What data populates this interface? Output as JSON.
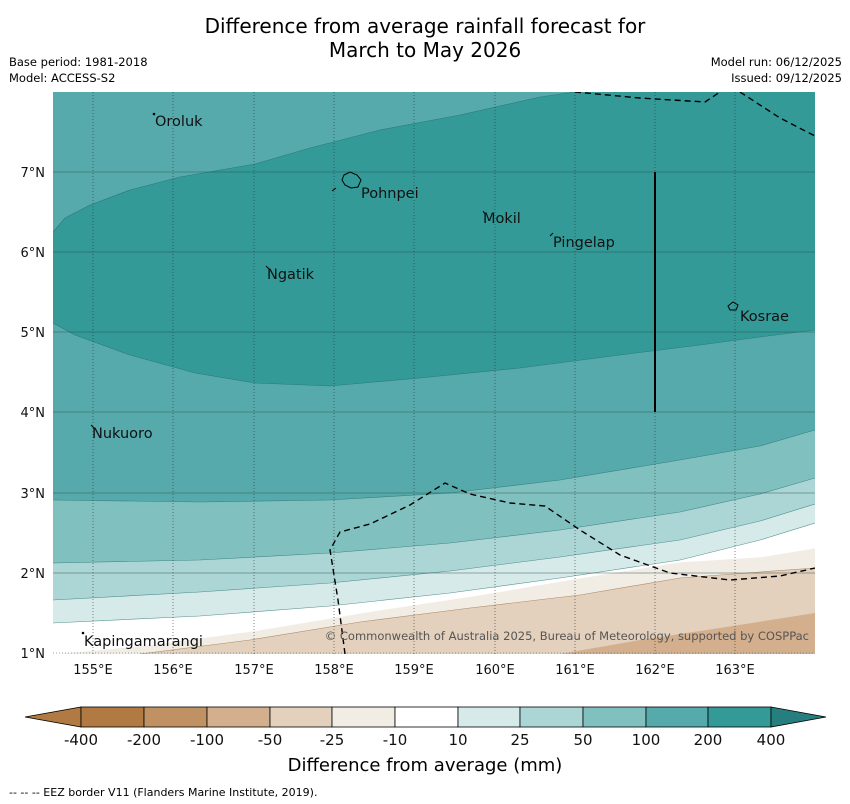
{
  "header": {
    "title_line1": "Difference from average rainfall forecast for",
    "title_line2": "March to May 2026",
    "base_period": "Base period: 1981-2018",
    "model": "Model: ACCESS-S2",
    "model_run": "Model run: 06/12/2025",
    "issued": "Issued: 09/12/2025"
  },
  "map": {
    "lat_labels": [
      "7°N",
      "6°N",
      "5°N",
      "4°N",
      "3°N",
      "2°N",
      "1°N"
    ],
    "lon_labels": [
      "155°E",
      "156°E",
      "157°E",
      "158°E",
      "159°E",
      "160°E",
      "161°E",
      "162°E",
      "163°E"
    ],
    "places": [
      "Oroluk",
      "Pohnpei",
      "Mokil",
      "Pingelap",
      "Ngatik",
      "Kosrae",
      "Nukuoro",
      "Kapingamarangi"
    ],
    "copyright": "© Commonwealth of Australia 2025, Bureau of Meteorology, supported by COSPPac"
  },
  "colorbar": {
    "ticks": [
      "-400",
      "-200",
      "-100",
      "-50",
      "-25",
      "-10",
      "10",
      "25",
      "50",
      "100",
      "200",
      "400"
    ],
    "colors": [
      "#b07a42",
      "#c09263",
      "#d3af8e",
      "#e3d0bd",
      "#f1ece4",
      "#ffffff",
      "#d6eaea",
      "#acd6d5",
      "#80c1bf",
      "#56aaab",
      "#339a98",
      "#267f7e"
    ],
    "title": "Difference from average (mm)"
  },
  "footer": {
    "legend": "--  --  -- EEZ border V11 (Flanders Marine Institute, 2019)."
  }
}
